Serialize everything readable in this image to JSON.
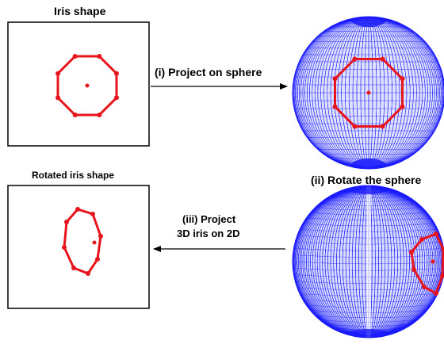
{
  "labels": {
    "iris_shape": "Iris shape",
    "rotated_iris_shape": "Rotated iris shape",
    "step_project": "(i) Project on sphere",
    "step_rotate": "(ii) Rotate the sphere",
    "step_project_2d_line1": "(iii) Project",
    "step_project_2d_line2": "3D iris on 2D"
  },
  "colors": {
    "iris": "#e8141c",
    "sphere_mesh": "#1a1aff",
    "box_border": "#000000",
    "arrow": "#000000"
  }
}
